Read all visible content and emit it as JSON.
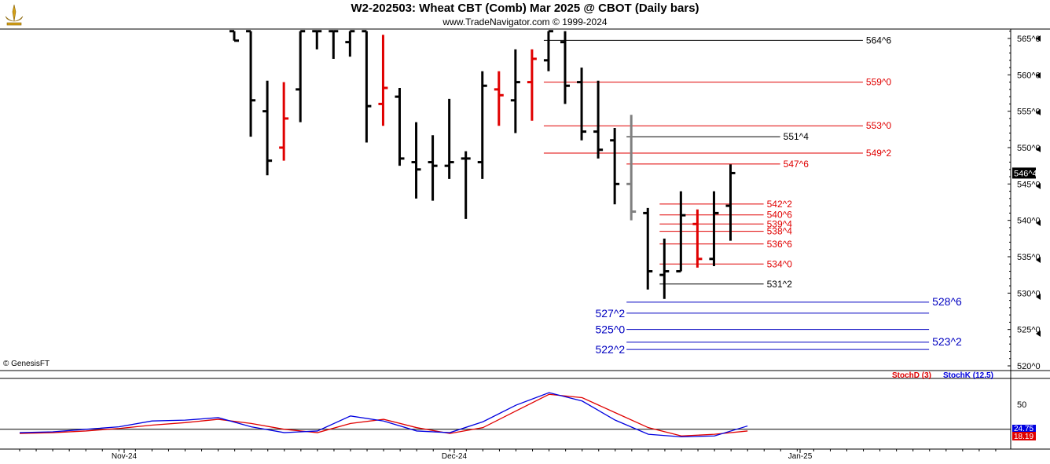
{
  "header": {
    "title": "W2-202503:  Wheat CBT (Comb) Mar 2025 @ CBOT  (Daily bars)",
    "subtitle": "www.TradeNavigator.com © 1999-2024"
  },
  "footer": {
    "credit": "© GenesisFT"
  },
  "colors": {
    "up_bar": "#000000",
    "down_bar": "#e00000",
    "gray_bar": "#808080",
    "open_tick_green": "#00c000",
    "level_red": "#e00000",
    "level_black": "#000000",
    "level_blue": "#0000c0",
    "stoch_d": "#e00000",
    "stoch_k": "#0000e0",
    "last_price_bg": "#000000"
  },
  "chart_data": [
    {
      "type": "ohlc",
      "title": "W2-202503:  Wheat CBT (Comb) Mar 2025 @ CBOT  (Daily bars)",
      "y_axis": {
        "min": 520,
        "max": 565,
        "ticks": [
          "520^0",
          "525^0",
          "530^0",
          "535^0",
          "540^0",
          "545^0",
          "550^0",
          "555^0",
          "560^0",
          "565^0"
        ],
        "position": "right"
      },
      "x_axis": {
        "labels": [
          "Nov-24",
          "Dec-24",
          "Jan-25"
        ]
      },
      "last_price_label": "546^4",
      "last_price": 546.5,
      "bars": [
        {
          "h": 566.0,
          "l": 564.7,
          "o": 566.0,
          "c": 564.7,
          "col": "k"
        },
        {
          "h": 566.0,
          "l": 551.5,
          "o": 566.0,
          "c": 556.5,
          "col": "k"
        },
        {
          "h": 559.2,
          "l": 546.2,
          "o": 555.0,
          "c": 548.2,
          "col": "k"
        },
        {
          "h": 559.0,
          "l": 548.2,
          "o": 550.0,
          "c": 554.0,
          "col": "r"
        },
        {
          "h": 566.0,
          "l": 553.5,
          "o": 558.0,
          "c": 566.0,
          "col": "k"
        },
        {
          "h": 566.0,
          "l": 563.5,
          "o": 566.0,
          "c": 566.0,
          "col": "k"
        },
        {
          "h": 566.0,
          "l": 562.2,
          "o": 566.0,
          "c": 566.0,
          "col": "k"
        },
        {
          "h": 566.0,
          "l": 562.5,
          "o": 564.5,
          "c": 566.0,
          "col": "k"
        },
        {
          "h": 566.0,
          "l": 550.7,
          "o": 566.0,
          "c": 555.7,
          "col": "k"
        },
        {
          "h": 565.5,
          "l": 553.0,
          "o": 556.0,
          "c": 558.2,
          "col": "r"
        },
        {
          "h": 558.2,
          "l": 547.5,
          "o": 557.0,
          "c": 548.5,
          "col": "k"
        },
        {
          "h": 553.5,
          "l": 543.0,
          "o": 548.0,
          "c": 547.0,
          "col": "k"
        },
        {
          "h": 551.7,
          "l": 542.7,
          "o": 548.0,
          "c": 547.5,
          "col": "k"
        },
        {
          "h": 556.7,
          "l": 545.7,
          "o": 547.5,
          "c": 548.0,
          "col": "k"
        },
        {
          "h": 549.5,
          "l": 540.2,
          "o": 548.5,
          "c": 548.5,
          "col": "k"
        },
        {
          "h": 560.5,
          "l": 545.7,
          "o": 548.0,
          "c": 558.5,
          "col": "k"
        },
        {
          "h": 560.5,
          "l": 553.0,
          "o": 558.0,
          "c": 557.2,
          "col": "r"
        },
        {
          "h": 563.5,
          "l": 552.0,
          "o": 556.5,
          "c": 559.0,
          "col": "k"
        },
        {
          "h": 563.5,
          "l": 553.7,
          "o": 559.0,
          "c": 562.2,
          "col": "r"
        },
        {
          "h": 566.0,
          "l": 560.5,
          "o": 562.0,
          "c": 566.0,
          "col": "k"
        },
        {
          "h": 566.0,
          "l": 556.0,
          "o": 564.5,
          "c": 558.5,
          "col": "k"
        },
        {
          "h": 561.0,
          "l": 551.0,
          "o": 559.0,
          "c": 552.2,
          "col": "k"
        },
        {
          "h": 559.2,
          "l": 548.5,
          "o": 552.2,
          "c": 549.7,
          "col": "k"
        },
        {
          "h": 552.7,
          "l": 542.2,
          "o": 551.0,
          "c": 545.0,
          "col": "k"
        },
        {
          "h": 554.5,
          "l": 540.0,
          "o": 545.0,
          "c": 541.2,
          "col": "g"
        },
        {
          "h": 541.7,
          "l": 530.5,
          "o": 541.0,
          "c": 533.0,
          "col": "k"
        },
        {
          "h": 537.5,
          "l": 529.2,
          "o": 532.5,
          "c": 533.0,
          "col": "k"
        },
        {
          "h": 544.0,
          "l": 533.0,
          "o": 533.0,
          "c": 540.7,
          "col": "k"
        },
        {
          "h": 541.5,
          "l": 533.5,
          "o": 539.5,
          "c": 534.7,
          "col": "r"
        },
        {
          "h": 544.0,
          "l": 533.7,
          "o": 534.7,
          "c": 541.0,
          "col": "k"
        },
        {
          "h": 547.7,
          "l": 537.2,
          "o": 542.0,
          "c": 546.5,
          "col": "k"
        }
      ],
      "levels": [
        {
          "label": "564^6",
          "value": 564.75,
          "color": "#000000",
          "from_bar": 19,
          "to_bar": 38
        },
        {
          "label": "559^0",
          "value": 559.0,
          "color": "#e00000",
          "from_bar": 19,
          "to_bar": 38
        },
        {
          "label": "553^0",
          "value": 553.0,
          "color": "#e00000",
          "from_bar": 19,
          "to_bar": 38
        },
        {
          "label": "551^4",
          "value": 551.5,
          "color": "#000000",
          "from_bar": 24,
          "to_bar": 33
        },
        {
          "label": "549^2",
          "value": 549.25,
          "color": "#e00000",
          "from_bar": 19,
          "to_bar": 38
        },
        {
          "label": "547^6",
          "value": 547.75,
          "color": "#e00000",
          "from_bar": 24,
          "to_bar": 33
        },
        {
          "label": "542^2",
          "value": 542.25,
          "color": "#e00000",
          "from_bar": 26,
          "to_bar": 32
        },
        {
          "label": "540^6",
          "value": 540.75,
          "color": "#e00000",
          "from_bar": 26,
          "to_bar": 32
        },
        {
          "label": "539^4",
          "value": 539.5,
          "color": "#e00000",
          "from_bar": 26,
          "to_bar": 32
        },
        {
          "label": "538^4",
          "value": 538.5,
          "color": "#e00000",
          "from_bar": 26,
          "to_bar": 32
        },
        {
          "label": "536^6",
          "value": 536.75,
          "color": "#e00000",
          "from_bar": 26,
          "to_bar": 32
        },
        {
          "label": "534^0",
          "value": 534.0,
          "color": "#e00000",
          "from_bar": 26,
          "to_bar": 32
        },
        {
          "label": "531^2",
          "value": 531.25,
          "color": "#000000",
          "from_bar": 26,
          "to_bar": 32
        },
        {
          "label": "528^6",
          "value": 528.75,
          "color": "#0000c0",
          "from_bar": 24,
          "to_bar": 42,
          "label_side": "right"
        },
        {
          "label": "527^2",
          "value": 527.25,
          "color": "#0000c0",
          "from_bar": 24,
          "to_bar": 42,
          "label_side": "left"
        },
        {
          "label": "525^0",
          "value": 525.0,
          "color": "#0000c0",
          "from_bar": 24,
          "to_bar": 42,
          "label_side": "left"
        },
        {
          "label": "523^2",
          "value": 523.25,
          "color": "#0000c0",
          "from_bar": 24,
          "to_bar": 42,
          "label_side": "right"
        },
        {
          "label": "522^2",
          "value": 522.25,
          "color": "#0000c0",
          "from_bar": 24,
          "to_bar": 42,
          "label_side": "left"
        }
      ]
    },
    {
      "type": "line",
      "title": "",
      "y_axis": {
        "min": 0,
        "max": 100,
        "ticks": [
          "50"
        ]
      },
      "reference_line": 20,
      "last_values": {
        "StochK (12,5)": "24.75",
        "StochD (3)": "18.19"
      },
      "series": [
        {
          "name": "StochD (3)",
          "color": "#e00000",
          "x": [
            0,
            2,
            4,
            6,
            8,
            10,
            12,
            14,
            16,
            18,
            20,
            22,
            24,
            26,
            28,
            30,
            32,
            34,
            36,
            38,
            40,
            42,
            44
          ],
          "values": [
            15,
            16,
            18,
            21,
            25,
            28,
            32,
            27,
            20,
            16,
            27,
            32,
            22,
            15,
            22,
            42,
            62,
            58,
            40,
            22,
            12,
            14,
            18
          ]
        },
        {
          "name": "StochK (12,5)",
          "color": "#0000e0",
          "x": [
            0,
            2,
            4,
            6,
            8,
            10,
            12,
            14,
            16,
            18,
            20,
            22,
            24,
            26,
            28,
            30,
            32,
            34,
            36,
            38,
            40,
            42,
            44
          ],
          "values": [
            16,
            17,
            20,
            23,
            30,
            31,
            34,
            23,
            16,
            18,
            36,
            30,
            18,
            16,
            29,
            49,
            64,
            54,
            31,
            14,
            11,
            12,
            24
          ]
        }
      ],
      "legend": [
        "StochD (3)",
        "StochK (12,5)"
      ]
    }
  ]
}
